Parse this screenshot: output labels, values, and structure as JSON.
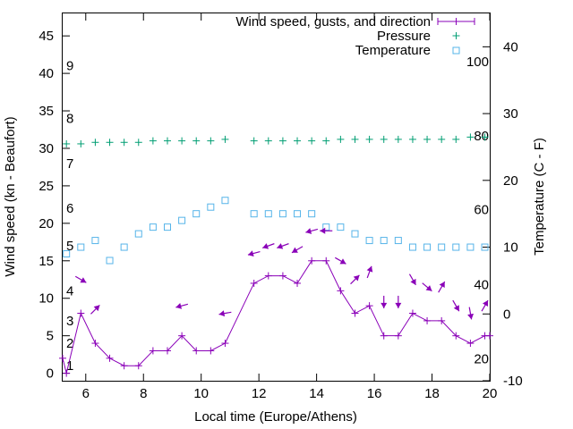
{
  "chart_data": {
    "type": "line",
    "legend_placement": "top-right",
    "xlabel": "Local time (Europe/Athens)",
    "ylabel_left": "Wind speed (kn - Beaufort)",
    "ylabel_right": "Temperature (C - F)",
    "xlim": [
      5.2,
      20
    ],
    "ylim_left": [
      -1,
      48
    ],
    "ylim_right": [
      -10,
      45
    ],
    "x_ticks": [
      6,
      8,
      10,
      12,
      14,
      16,
      18,
      20
    ],
    "y_ticks_left": [
      0,
      5,
      10,
      15,
      20,
      25,
      30,
      35,
      40,
      45
    ],
    "y_ticks_right": [
      -10,
      0,
      10,
      20,
      30,
      40
    ],
    "beaufort_labels": [
      {
        "label": "1",
        "y": 1
      },
      {
        "label": "2",
        "y": 4
      },
      {
        "label": "3",
        "y": 7
      },
      {
        "label": "4",
        "y": 11
      },
      {
        "label": "5",
        "y": 17
      },
      {
        "label": "6",
        "y": 22
      },
      {
        "label": "7",
        "y": 28
      },
      {
        "label": "8",
        "y": 34
      },
      {
        "label": "9",
        "y": 41
      }
    ],
    "fahrenheit_labels": [
      {
        "label": "20",
        "c": -6.7
      },
      {
        "label": "40",
        "c": 4.4
      },
      {
        "label": "60",
        "c": 15.6
      },
      {
        "label": "80",
        "c": 26.7
      },
      {
        "label": "100",
        "c": 37.8
      }
    ],
    "series": [
      {
        "name": "Wind speed, gusts, and direction",
        "color": "#8a00b8",
        "x": [
          5.0,
          5.33,
          5.83,
          6.33,
          6.83,
          7.33,
          7.83,
          8.33,
          8.83,
          9.33,
          9.83,
          10.33,
          10.83,
          11.83,
          12.33,
          12.83,
          13.33,
          13.83,
          14.33,
          14.83,
          15.33,
          15.83,
          16.33,
          16.83,
          17.33,
          17.83,
          18.33,
          18.83,
          19.33,
          19.83,
          20.0
        ],
        "y": [
          2,
          0,
          8,
          4,
          2,
          1,
          1,
          3,
          3,
          5,
          3,
          3,
          4,
          12,
          13,
          13,
          12,
          15,
          15,
          11,
          8,
          9,
          5,
          5,
          8,
          7,
          7,
          5,
          4,
          5,
          5
        ]
      },
      {
        "name": "Pressure",
        "color": "#009e73",
        "x": [
          5.33,
          5.83,
          6.33,
          6.83,
          7.33,
          7.83,
          8.33,
          8.83,
          9.33,
          9.83,
          10.33,
          10.83,
          11.83,
          12.33,
          12.83,
          13.33,
          13.83,
          14.33,
          14.83,
          15.33,
          15.83,
          16.33,
          16.83,
          17.33,
          17.83,
          18.33,
          18.83,
          19.33,
          19.83
        ],
        "y": [
          30.6,
          30.6,
          30.8,
          30.8,
          30.8,
          30.8,
          31.0,
          31.0,
          31.0,
          31.0,
          31.0,
          31.2,
          31.0,
          31.0,
          31.0,
          31.0,
          31.0,
          31.0,
          31.2,
          31.2,
          31.2,
          31.2,
          31.2,
          31.2,
          31.2,
          31.2,
          31.2,
          31.5,
          31.5
        ]
      },
      {
        "name": "Temperature",
        "color": "#56b4e9",
        "axis": "right",
        "x": [
          5.33,
          5.83,
          6.33,
          6.83,
          7.33,
          7.83,
          8.33,
          8.83,
          9.33,
          9.83,
          10.33,
          10.83,
          11.83,
          12.33,
          12.83,
          13.33,
          13.83,
          14.33,
          14.83,
          15.33,
          15.83,
          16.33,
          16.83,
          17.33,
          17.83,
          18.33,
          18.83,
          19.33,
          19.83
        ],
        "y": [
          9,
          10,
          11,
          8,
          10,
          12,
          13,
          13,
          14,
          15,
          16,
          17,
          15,
          15,
          15,
          15,
          15,
          13,
          13,
          12,
          11,
          11,
          11,
          10,
          10,
          10,
          10,
          10,
          10
        ]
      }
    ],
    "wind_arrows": [
      {
        "x": 5.83,
        "y": 12.5,
        "dir": 300
      },
      {
        "x": 6.33,
        "y": 8.5,
        "dir": 225
      },
      {
        "x": 9.33,
        "y": 9.0,
        "dir": 75
      },
      {
        "x": 10.83,
        "y": 8.0,
        "dir": 80
      },
      {
        "x": 11.83,
        "y": 16.0,
        "dir": 75
      },
      {
        "x": 12.33,
        "y": 17.0,
        "dir": 70
      },
      {
        "x": 12.83,
        "y": 17.0,
        "dir": 70
      },
      {
        "x": 13.33,
        "y": 16.5,
        "dir": 60
      },
      {
        "x": 13.83,
        "y": 19.0,
        "dir": 75
      },
      {
        "x": 14.33,
        "y": 19.0,
        "dir": 90
      },
      {
        "x": 14.83,
        "y": 15.0,
        "dir": 300
      },
      {
        "x": 15.33,
        "y": 12.5,
        "dir": 225
      },
      {
        "x": 15.83,
        "y": 13.5,
        "dir": 200
      },
      {
        "x": 16.33,
        "y": 9.5,
        "dir": 0
      },
      {
        "x": 16.83,
        "y": 9.5,
        "dir": 0
      },
      {
        "x": 17.33,
        "y": 12.5,
        "dir": 330
      },
      {
        "x": 17.83,
        "y": 11.5,
        "dir": 310
      },
      {
        "x": 18.33,
        "y": 11.5,
        "dir": 210
      },
      {
        "x": 18.83,
        "y": 9.0,
        "dir": 330
      },
      {
        "x": 19.33,
        "y": 8.0,
        "dir": 350
      },
      {
        "x": 19.83,
        "y": 9.0,
        "dir": 210
      }
    ]
  }
}
